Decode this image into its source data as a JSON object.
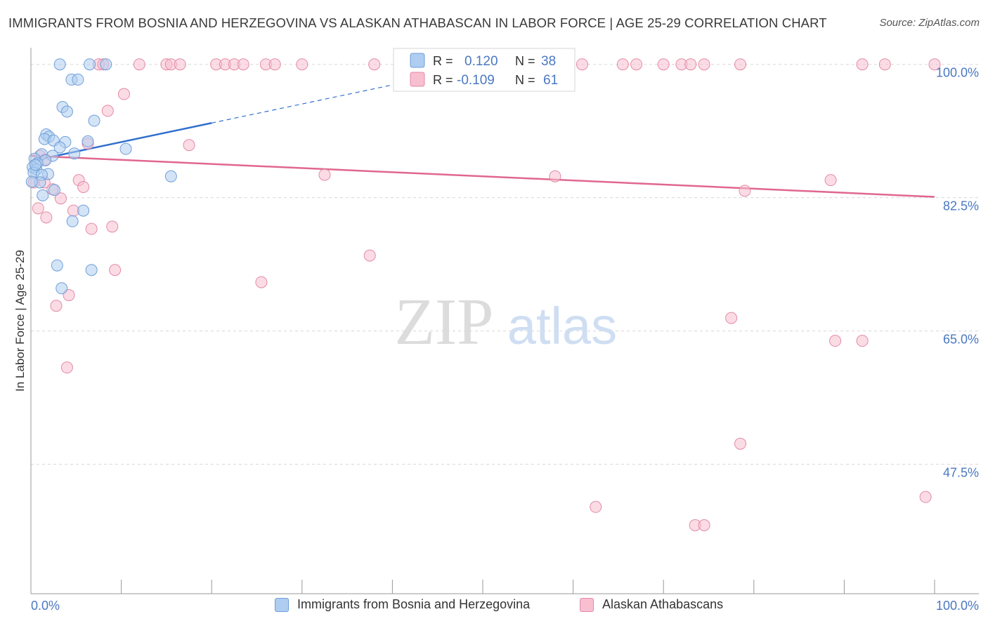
{
  "title": "IMMIGRANTS FROM BOSNIA AND HERZEGOVINA VS ALASKAN ATHABASCAN IN LABOR FORCE | AGE 25-29 CORRELATION CHART",
  "source": "Source: ZipAtlas.com",
  "watermark": {
    "zip": "ZIP",
    "atlas": "atlas"
  },
  "colors": {
    "blue_fill": "#aecdf0",
    "blue_stroke": "#6f9fd8",
    "blue_line": "#2f6fce",
    "pink_fill": "#f7bfd0",
    "pink_stroke": "#e38aa8",
    "pink_line": "#e0678f",
    "axis_value": "#4a78c2",
    "grid": "#d8d8d8"
  },
  "legend_box": {
    "row1": {
      "r_label": "R =",
      "r_value": "0.120",
      "n_label": "N =",
      "n_value": "38"
    },
    "row2": {
      "r_label": "R =",
      "r_value": "-0.109",
      "n_label": "N =",
      "n_value": "61"
    }
  },
  "chart_data": {
    "type": "scatter",
    "title": "IMMIGRANTS FROM BOSNIA AND HERZEGOVINA VS ALASKAN ATHABASCAN IN LABOR FORCE | AGE 25-29 CORRELATION CHART",
    "xlabel": "",
    "ylabel": "In Labor Force | Age 25-29",
    "xlim": [
      0,
      100
    ],
    "ylim": [
      30.5,
      102
    ],
    "x_tick_labels": {
      "left": "0.0%",
      "right": "100.0%"
    },
    "y_ticks": [
      {
        "value": 100,
        "label": "100.0%"
      },
      {
        "value": 82.5,
        "label": "82.5%"
      },
      {
        "value": 65,
        "label": "65.0%"
      },
      {
        "value": 47.5,
        "label": "47.5%"
      }
    ],
    "grid": "horizontal dashed",
    "legend_position": "bottom",
    "series": [
      {
        "name": "Immigrants from Bosnia and Herzegovina",
        "color": "#aecdf0",
        "R": 0.12,
        "N": 38,
        "trend": {
          "x": [
            0,
            20
          ],
          "y": [
            87.3,
            92.3
          ],
          "dashed_extension_to_x": 44.5
        },
        "points": [
          [
            3.2,
            100
          ],
          [
            6.5,
            100
          ],
          [
            8.3,
            100
          ],
          [
            4.5,
            98
          ],
          [
            5.2,
            98
          ],
          [
            3.5,
            94.4
          ],
          [
            4.0,
            93.8
          ],
          [
            7.0,
            92.6
          ],
          [
            1.7,
            90.8
          ],
          [
            2.0,
            90.5
          ],
          [
            1.5,
            90.2
          ],
          [
            2.5,
            90
          ],
          [
            3.8,
            89.8
          ],
          [
            6.3,
            89.9
          ],
          [
            3.2,
            89.1
          ],
          [
            10.5,
            88.9
          ],
          [
            4.8,
            88.3
          ],
          [
            1.2,
            88.2
          ],
          [
            2.4,
            88
          ],
          [
            0.4,
            87.6
          ],
          [
            1.6,
            87.4
          ],
          [
            0.7,
            87
          ],
          [
            0.2,
            86.5
          ],
          [
            0.6,
            86.2
          ],
          [
            0.3,
            85.8
          ],
          [
            1.9,
            85.6
          ],
          [
            1.2,
            85.5
          ],
          [
            15.5,
            85.3
          ],
          [
            1.0,
            84.5
          ],
          [
            0.1,
            84.6
          ],
          [
            2.6,
            83.5
          ],
          [
            1.3,
            82.8
          ],
          [
            5.8,
            80.8
          ],
          [
            4.6,
            79.4
          ],
          [
            2.9,
            73.6
          ],
          [
            6.7,
            73
          ],
          [
            3.4,
            70.6
          ],
          [
            0.5,
            86.8
          ]
        ]
      },
      {
        "name": "Alaskan Athabascans",
        "color": "#f7bfd0",
        "R": -0.109,
        "N": 61,
        "trend": {
          "x": [
            0,
            100
          ],
          "y": [
            88,
            82.6
          ]
        },
        "points": [
          [
            7.5,
            100
          ],
          [
            8.0,
            100
          ],
          [
            12,
            100
          ],
          [
            15,
            100
          ],
          [
            15.5,
            100
          ],
          [
            16.5,
            100
          ],
          [
            20.5,
            100
          ],
          [
            21.5,
            100
          ],
          [
            22.5,
            100
          ],
          [
            23.5,
            100
          ],
          [
            26,
            100
          ],
          [
            27,
            100
          ],
          [
            30,
            100
          ],
          [
            38,
            100
          ],
          [
            53,
            100
          ],
          [
            61,
            100
          ],
          [
            65.5,
            100
          ],
          [
            67,
            100
          ],
          [
            70,
            100
          ],
          [
            72,
            100
          ],
          [
            73,
            100
          ],
          [
            74.5,
            100
          ],
          [
            78.5,
            100
          ],
          [
            92,
            100
          ],
          [
            94.5,
            100
          ],
          [
            100,
            100
          ],
          [
            10.3,
            96.1
          ],
          [
            8.5,
            93.9
          ],
          [
            6.3,
            89.6
          ],
          [
            17.5,
            89.4
          ],
          [
            1.0,
            88
          ],
          [
            1.6,
            87.5
          ],
          [
            32.5,
            85.5
          ],
          [
            58,
            85.3
          ],
          [
            88.5,
            84.8
          ],
          [
            5.3,
            84.8
          ],
          [
            0.3,
            84.5
          ],
          [
            1.5,
            84.5
          ],
          [
            5.8,
            83.9
          ],
          [
            2.4,
            83.6
          ],
          [
            3.3,
            82.4
          ],
          [
            79,
            83.4
          ],
          [
            0.8,
            81.1
          ],
          [
            4.7,
            80.8
          ],
          [
            1.7,
            79.9
          ],
          [
            6.7,
            78.4
          ],
          [
            9.0,
            78.7
          ],
          [
            37.5,
            74.9
          ],
          [
            9.3,
            73
          ],
          [
            25.5,
            71.4
          ],
          [
            4.2,
            69.7
          ],
          [
            2.8,
            68.3
          ],
          [
            77.5,
            66.7
          ],
          [
            89,
            63.7
          ],
          [
            92,
            63.7
          ],
          [
            4.0,
            60.2
          ],
          [
            78.5,
            50.2
          ],
          [
            62.5,
            41.9
          ],
          [
            73.5,
            39.5
          ],
          [
            74.5,
            39.5
          ],
          [
            99,
            43.2
          ]
        ]
      }
    ]
  }
}
